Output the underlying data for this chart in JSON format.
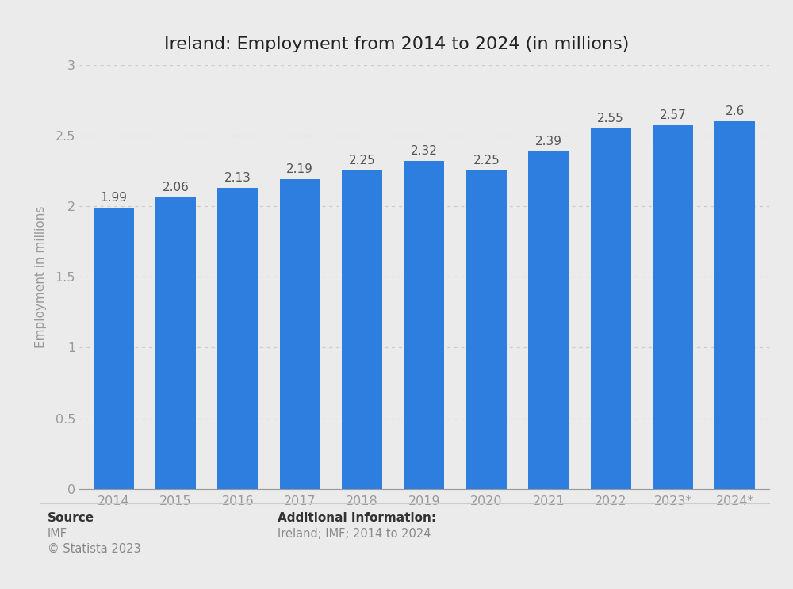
{
  "title": "Ireland: Employment from 2014 to 2024 (in millions)",
  "categories": [
    "2014",
    "2015",
    "2016",
    "2017",
    "2018",
    "2019",
    "2020",
    "2021",
    "2022",
    "2023*",
    "2024*"
  ],
  "values": [
    1.99,
    2.06,
    2.13,
    2.19,
    2.25,
    2.32,
    2.25,
    2.39,
    2.55,
    2.57,
    2.6
  ],
  "bar_color": "#2e7edf",
  "ylabel": "Employment in millions",
  "ylim": [
    0,
    3.0
  ],
  "ytick_vals": [
    0,
    0.5,
    1.0,
    1.5,
    2.0,
    2.5,
    3.0
  ],
  "ytick_labels": [
    "0",
    "0.5",
    "1",
    "1.5",
    "2",
    "2.5",
    "3"
  ],
  "background_color": "#ebebeb",
  "plot_background_color": "#ebebeb",
  "title_fontsize": 16,
  "label_fontsize": 11,
  "tick_fontsize": 11.5,
  "value_fontsize": 11,
  "source_label": "Source",
  "source_line1": "IMF",
  "source_line2": "© Statista 2023",
  "addl_info_label": "Additional Information:",
  "addl_info_line1": "Ireland; IMF; 2014 to 2024",
  "footer_fontsize": 10.5,
  "footer_label_fontsize": 11,
  "grid_color": "#cccccc",
  "tick_color": "#999999",
  "value_label_color": "#555555",
  "bar_width": 0.65
}
